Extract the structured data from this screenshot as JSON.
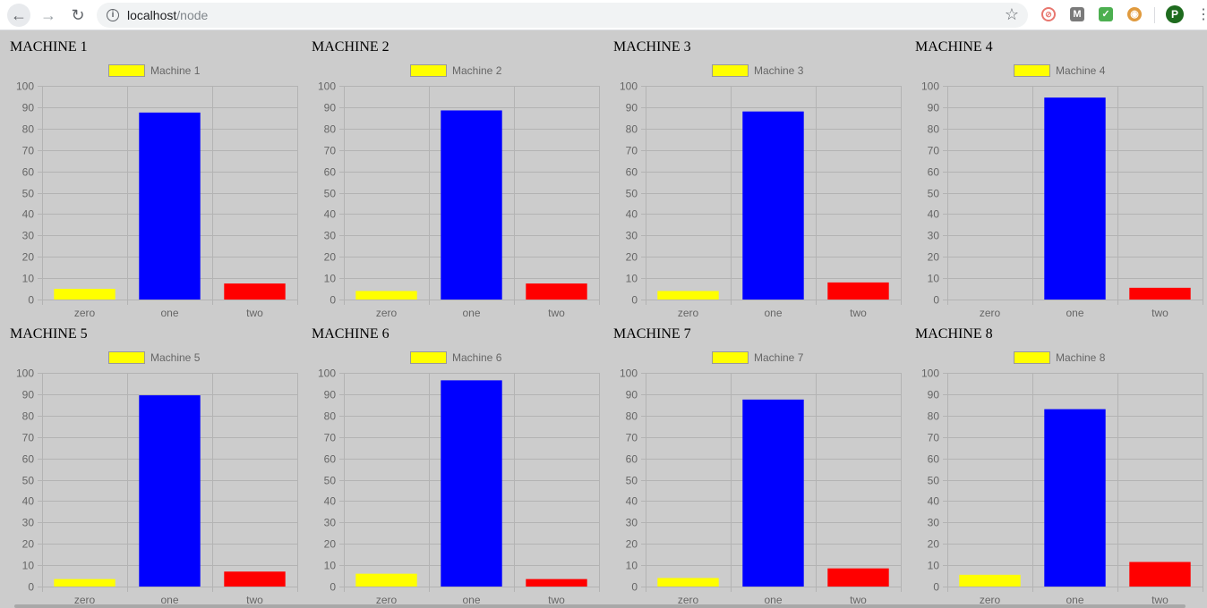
{
  "browser": {
    "url_host": "localhost",
    "url_path": "/node",
    "profile_initial": "P",
    "ext_m_label": "M"
  },
  "colors": {
    "zero": "#ffff00",
    "one": "#0000ff",
    "two": "#ff0000",
    "grid": "#b3b3b3",
    "text": "#666666"
  },
  "chart_data": [
    {
      "type": "bar",
      "title": "MACHINE 1",
      "legend": "Machine 1",
      "categories": [
        "zero",
        "one",
        "two"
      ],
      "values": [
        5,
        87.5,
        7.5
      ],
      "ylim": [
        0,
        100
      ],
      "yticks": [
        0,
        10,
        20,
        30,
        40,
        50,
        60,
        70,
        80,
        90,
        100
      ],
      "legend_position": "top"
    },
    {
      "type": "bar",
      "title": "MACHINE 2",
      "legend": "Machine 2",
      "categories": [
        "zero",
        "one",
        "two"
      ],
      "values": [
        4,
        88.5,
        7.5
      ],
      "ylim": [
        0,
        100
      ],
      "yticks": [
        0,
        10,
        20,
        30,
        40,
        50,
        60,
        70,
        80,
        90,
        100
      ],
      "legend_position": "top"
    },
    {
      "type": "bar",
      "title": "MACHINE 3",
      "legend": "Machine 3",
      "categories": [
        "zero",
        "one",
        "two"
      ],
      "values": [
        4,
        88,
        8
      ],
      "ylim": [
        0,
        100
      ],
      "yticks": [
        0,
        10,
        20,
        30,
        40,
        50,
        60,
        70,
        80,
        90,
        100
      ],
      "legend_position": "top"
    },
    {
      "type": "bar",
      "title": "MACHINE 4",
      "legend": "Machine 4",
      "categories": [
        "zero",
        "one",
        "two"
      ],
      "values": [
        0,
        94.5,
        5.5
      ],
      "ylim": [
        0,
        100
      ],
      "yticks": [
        0,
        10,
        20,
        30,
        40,
        50,
        60,
        70,
        80,
        90,
        100
      ],
      "legend_position": "top"
    },
    {
      "type": "bar",
      "title": "MACHINE 5",
      "legend": "Machine 5",
      "categories": [
        "zero",
        "one",
        "two"
      ],
      "values": [
        3.5,
        89.5,
        7
      ],
      "ylim": [
        0,
        100
      ],
      "yticks": [
        0,
        10,
        20,
        30,
        40,
        50,
        60,
        70,
        80,
        90,
        100
      ],
      "legend_position": "top"
    },
    {
      "type": "bar",
      "title": "MACHINE 6",
      "legend": "Machine 6",
      "categories": [
        "zero",
        "one",
        "two"
      ],
      "values": [
        6,
        96.5,
        3.5
      ],
      "ylim": [
        0,
        100
      ],
      "yticks": [
        0,
        10,
        20,
        30,
        40,
        50,
        60,
        70,
        80,
        90,
        100
      ],
      "legend_position": "top"
    },
    {
      "type": "bar",
      "title": "MACHINE 7",
      "legend": "Machine 7",
      "categories": [
        "zero",
        "one",
        "two"
      ],
      "values": [
        4,
        87.5,
        8.5
      ],
      "ylim": [
        0,
        100
      ],
      "yticks": [
        0,
        10,
        20,
        30,
        40,
        50,
        60,
        70,
        80,
        90,
        100
      ],
      "legend_position": "top"
    },
    {
      "type": "bar",
      "title": "MACHINE 8",
      "legend": "Machine 8",
      "categories": [
        "zero",
        "one",
        "two"
      ],
      "values": [
        5.5,
        83,
        11.5
      ],
      "ylim": [
        0,
        100
      ],
      "yticks": [
        0,
        10,
        20,
        30,
        40,
        50,
        60,
        70,
        80,
        90,
        100
      ],
      "legend_position": "top"
    }
  ]
}
